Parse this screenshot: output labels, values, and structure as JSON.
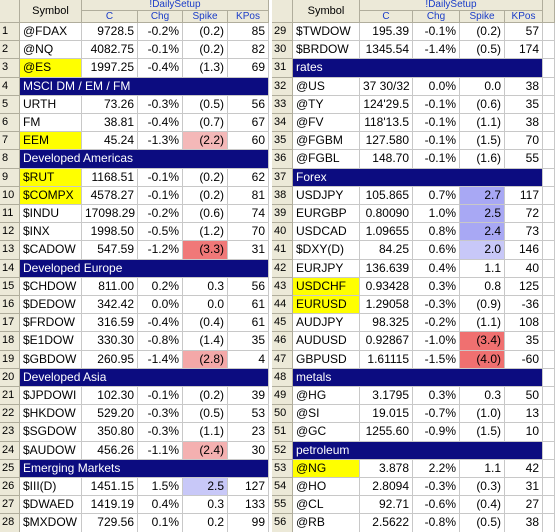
{
  "tables": [
    {
      "header": {
        "symbol": "Symbol",
        "group": "!DailySetup",
        "columns": [
          "C",
          "Chg",
          "Spike",
          "KPos"
        ]
      },
      "rows": [
        {
          "num": 1,
          "symbol": "@FDAX",
          "cells": [
            "9728.5",
            "-0.2%",
            "(0.2)",
            "85"
          ]
        },
        {
          "num": 2,
          "symbol": "@NQ",
          "cells": [
            "4082.75",
            "-0.1%",
            "(0.2)",
            "82"
          ]
        },
        {
          "num": 3,
          "symbol": "@ES",
          "symbol_bg": "#ffff00",
          "cells": [
            "1997.25",
            "-0.4%",
            "(1.3)",
            "69"
          ]
        },
        {
          "num": 4,
          "section": "MSCI DM / EM / FM"
        },
        {
          "num": 5,
          "symbol": "URTH",
          "cells": [
            "73.26",
            "-0.3%",
            "(0.5)",
            "56"
          ]
        },
        {
          "num": 6,
          "symbol": "FM",
          "cells": [
            "38.81",
            "-0.4%",
            "(0.7)",
            "67"
          ]
        },
        {
          "num": 7,
          "symbol": "EEM",
          "symbol_bg": "#ffff00",
          "spike_bg": "#f4b8b8",
          "cells": [
            "45.24",
            "-1.3%",
            "(2.2)",
            "60"
          ]
        },
        {
          "num": 8,
          "section": "Developed Americas"
        },
        {
          "num": 9,
          "symbol": "$RUT",
          "symbol_bg": "#ffff00",
          "cells": [
            "1168.51",
            "-0.1%",
            "(0.2)",
            "62"
          ]
        },
        {
          "num": 10,
          "symbol": "$COMPX",
          "symbol_bg": "#ffff00",
          "cells": [
            "4578.27",
            "-0.1%",
            "(0.2)",
            "81"
          ]
        },
        {
          "num": 11,
          "symbol": "$INDU",
          "cells": [
            "17098.29",
            "-0.2%",
            "(0.6)",
            "74"
          ]
        },
        {
          "num": 12,
          "symbol": "$INX",
          "cells": [
            "1998.50",
            "-0.5%",
            "(1.2)",
            "70"
          ]
        },
        {
          "num": 13,
          "symbol": "$CADOW",
          "spike_bg": "#f07878",
          "cells": [
            "547.59",
            "-1.2%",
            "(3.3)",
            "31"
          ]
        },
        {
          "num": 14,
          "section": "Developed Europe"
        },
        {
          "num": 15,
          "symbol": "$CHDOW",
          "cells": [
            "811.00",
            "0.2%",
            "0.3",
            "56"
          ]
        },
        {
          "num": 16,
          "symbol": "$DEDOW",
          "cells": [
            "342.42",
            "0.0%",
            "0.0",
            "61"
          ]
        },
        {
          "num": 17,
          "symbol": "$FRDOW",
          "cells": [
            "316.59",
            "-0.4%",
            "(0.4)",
            "61"
          ]
        },
        {
          "num": 18,
          "symbol": "$E1DOW",
          "cells": [
            "330.30",
            "-0.8%",
            "(1.4)",
            "35"
          ]
        },
        {
          "num": 19,
          "symbol": "$GBDOW",
          "spike_bg": "#f4a8a8",
          "cells": [
            "260.95",
            "-1.4%",
            "(2.8)",
            "4"
          ]
        },
        {
          "num": 20,
          "section": "Developed Asia"
        },
        {
          "num": 21,
          "symbol": "$JPDOWI",
          "cells": [
            "102.30",
            "-0.1%",
            "(0.2)",
            "39"
          ]
        },
        {
          "num": 22,
          "symbol": "$HKDOW",
          "cells": [
            "529.20",
            "-0.3%",
            "(0.5)",
            "53"
          ]
        },
        {
          "num": 23,
          "symbol": "$SGDOW",
          "cells": [
            "350.80",
            "-0.3%",
            "(1.1)",
            "23"
          ]
        },
        {
          "num": 24,
          "symbol": "$AUDOW",
          "spike_bg": "#f4b0b0",
          "cells": [
            "456.26",
            "-1.1%",
            "(2.4)",
            "30"
          ]
        },
        {
          "num": 25,
          "section": "Emerging Markets"
        },
        {
          "num": 26,
          "symbol": "$III(D)",
          "spike_bg": "#c8c8f8",
          "cells": [
            "1451.15",
            "1.5%",
            "2.5",
            "127"
          ]
        },
        {
          "num": 27,
          "symbol": "$DWAED",
          "cells": [
            "1419.19",
            "0.4%",
            "0.3",
            "133"
          ]
        },
        {
          "num": 28,
          "symbol": "$MXDOW",
          "cells": [
            "729.56",
            "0.1%",
            "0.2",
            "99"
          ]
        }
      ]
    },
    {
      "header": {
        "symbol": "Symbol",
        "group": "!DailySetup",
        "columns": [
          "C",
          "Chg",
          "Spike",
          "KPos"
        ]
      },
      "rows": [
        {
          "num": 29,
          "symbol": "$TWDOW",
          "cells": [
            "195.39",
            "-0.1%",
            "(0.2)",
            "57"
          ]
        },
        {
          "num": 30,
          "symbol": "$BRDOW",
          "cells": [
            "1345.54",
            "-1.4%",
            "(0.5)",
            "174"
          ]
        },
        {
          "num": 31,
          "section": "rates"
        },
        {
          "num": 32,
          "symbol": "@US",
          "cells": [
            "37  30/32",
            "0.0%",
            "0.0",
            "38"
          ]
        },
        {
          "num": 33,
          "symbol": "@TY",
          "cells": [
            "124'29.5",
            "-0.1%",
            "(0.6)",
            "35"
          ]
        },
        {
          "num": 34,
          "symbol": "@FV",
          "cells": [
            "118'13.5",
            "-0.1%",
            "(1.1)",
            "38"
          ]
        },
        {
          "num": 35,
          "symbol": "@FGBM",
          "cells": [
            "127.580",
            "-0.1%",
            "(1.5)",
            "70"
          ]
        },
        {
          "num": 36,
          "symbol": "@FGBL",
          "cells": [
            "148.70",
            "-0.1%",
            "(1.6)",
            "55"
          ]
        },
        {
          "num": 37,
          "section": "Forex"
        },
        {
          "num": 38,
          "symbol": "USDJPY",
          "spike_bg": "#a8a8f4",
          "cells": [
            "105.865",
            "0.7%",
            "2.7",
            "117"
          ]
        },
        {
          "num": 39,
          "symbol": "EURGBP",
          "spike_bg": "#a8a8f4",
          "cells": [
            "0.80090",
            "1.0%",
            "2.5",
            "72"
          ]
        },
        {
          "num": 40,
          "symbol": "USDCAD",
          "spike_bg": "#a8a8f4",
          "cells": [
            "1.09655",
            "0.8%",
            "2.4",
            "73"
          ]
        },
        {
          "num": 41,
          "symbol": "$DXY(D)",
          "spike_bg": "#c8c8f8",
          "cells": [
            "84.25",
            "0.6%",
            "2.0",
            "146"
          ]
        },
        {
          "num": 42,
          "symbol": "EURJPY",
          "cells": [
            "136.639",
            "0.4%",
            "1.1",
            "40"
          ]
        },
        {
          "num": 43,
          "symbol": "USDCHF",
          "symbol_bg": "#ffff00",
          "cells": [
            "0.93428",
            "0.3%",
            "0.8",
            "125"
          ]
        },
        {
          "num": 44,
          "symbol": "EURUSD",
          "symbol_bg": "#ffff00",
          "cells": [
            "1.29058",
            "-0.3%",
            "(0.9)",
            "-36"
          ]
        },
        {
          "num": 45,
          "symbol": "AUDJPY",
          "cells": [
            "98.325",
            "-0.2%",
            "(1.1)",
            "108"
          ]
        },
        {
          "num": 46,
          "symbol": "AUDUSD",
          "spike_bg": "#f07070",
          "cells": [
            "0.92867",
            "-1.0%",
            "(3.4)",
            "35"
          ]
        },
        {
          "num": 47,
          "symbol": "GBPUSD",
          "spike_bg": "#f07070",
          "cells": [
            "1.61115",
            "-1.5%",
            "(4.0)",
            "-60"
          ]
        },
        {
          "num": 48,
          "section": "metals"
        },
        {
          "num": 49,
          "symbol": "@HG",
          "cells": [
            "3.1795",
            "0.3%",
            "0.3",
            "50"
          ]
        },
        {
          "num": 50,
          "symbol": "@SI",
          "cells": [
            "19.015",
            "-0.7%",
            "(1.0)",
            "13"
          ]
        },
        {
          "num": 51,
          "symbol": "@GC",
          "cells": [
            "1255.60",
            "-0.9%",
            "(1.5)",
            "10"
          ]
        },
        {
          "num": 52,
          "section": "petroleum"
        },
        {
          "num": 53,
          "symbol": "@NG",
          "symbol_bg": "#ffff00",
          "cells": [
            "3.878",
            "2.2%",
            "1.1",
            "42"
          ]
        },
        {
          "num": 54,
          "symbol": "@HO",
          "cells": [
            "2.8094",
            "-0.3%",
            "(0.3)",
            "31"
          ]
        },
        {
          "num": 55,
          "symbol": "@CL",
          "cells": [
            "92.71",
            "-0.6%",
            "(0.4)",
            "27"
          ]
        },
        {
          "num": 56,
          "symbol": "@RB",
          "cells": [
            "2.5622",
            "-0.8%",
            "(0.5)",
            "38"
          ]
        }
      ]
    }
  ]
}
